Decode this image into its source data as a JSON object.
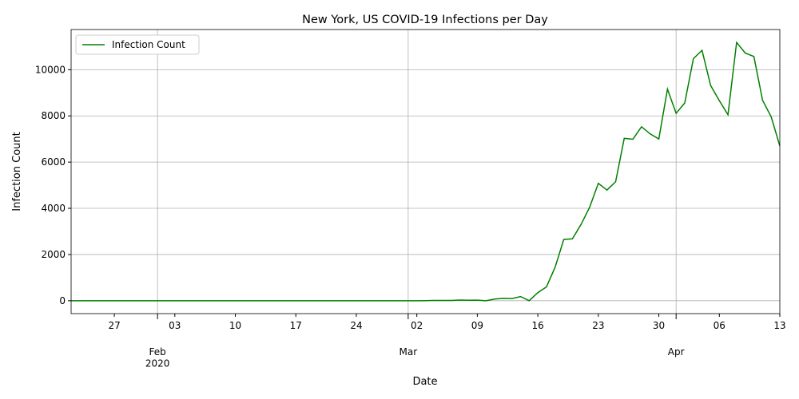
{
  "chart_data": {
    "type": "line",
    "title": "New York, US COVID-19 Infections per Day",
    "xlabel": "Date",
    "ylabel": "Infection Count",
    "x": [
      "2020-01-22",
      "2020-01-23",
      "2020-01-24",
      "2020-01-25",
      "2020-01-26",
      "2020-01-27",
      "2020-01-28",
      "2020-01-29",
      "2020-01-30",
      "2020-01-31",
      "2020-02-01",
      "2020-02-02",
      "2020-02-03",
      "2020-02-04",
      "2020-02-05",
      "2020-02-06",
      "2020-02-07",
      "2020-02-08",
      "2020-02-09",
      "2020-02-10",
      "2020-02-11",
      "2020-02-12",
      "2020-02-13",
      "2020-02-14",
      "2020-02-15",
      "2020-02-16",
      "2020-02-17",
      "2020-02-18",
      "2020-02-19",
      "2020-02-20",
      "2020-02-21",
      "2020-02-22",
      "2020-02-23",
      "2020-02-24",
      "2020-02-25",
      "2020-02-26",
      "2020-02-27",
      "2020-02-28",
      "2020-02-29",
      "2020-03-01",
      "2020-03-02",
      "2020-03-03",
      "2020-03-04",
      "2020-03-05",
      "2020-03-06",
      "2020-03-07",
      "2020-03-08",
      "2020-03-09",
      "2020-03-10",
      "2020-03-11",
      "2020-03-12",
      "2020-03-13",
      "2020-03-14",
      "2020-03-15",
      "2020-03-16",
      "2020-03-17",
      "2020-03-18",
      "2020-03-19",
      "2020-03-20",
      "2020-03-21",
      "2020-03-22",
      "2020-03-23",
      "2020-03-24",
      "2020-03-25",
      "2020-03-26",
      "2020-03-27",
      "2020-03-28",
      "2020-03-29",
      "2020-03-30",
      "2020-03-31",
      "2020-04-01",
      "2020-04-02",
      "2020-04-03",
      "2020-04-04",
      "2020-04-05",
      "2020-04-06",
      "2020-04-07",
      "2020-04-08",
      "2020-04-09",
      "2020-04-10",
      "2020-04-11",
      "2020-04-12",
      "2020-04-13"
    ],
    "series": [
      {
        "name": "Infection Count",
        "color": "#008000",
        "values": [
          0,
          0,
          0,
          0,
          0,
          0,
          0,
          0,
          0,
          0,
          0,
          0,
          0,
          0,
          0,
          0,
          0,
          0,
          0,
          0,
          0,
          0,
          0,
          0,
          0,
          0,
          0,
          0,
          0,
          0,
          0,
          0,
          0,
          0,
          0,
          0,
          0,
          0,
          0,
          0,
          0,
          1,
          9,
          11,
          10,
          30,
          20,
          25,
          0,
          70,
          100,
          95,
          180,
          0,
          350,
          600,
          1450,
          2650,
          2680,
          3300,
          4050,
          5080,
          4790,
          5150,
          7030,
          6990,
          7530,
          7220,
          7000,
          9160,
          8110,
          8560,
          10480,
          10840,
          9310,
          8660,
          8050,
          11180,
          10720,
          10570,
          8680,
          7960,
          6700
        ]
      }
    ],
    "xlim": [
      "2020-01-22",
      "2020-04-13"
    ],
    "xticks": [
      {
        "value": "2020-01-27",
        "label": "27"
      },
      {
        "value": "2020-02-03",
        "label": "03"
      },
      {
        "value": "2020-02-10",
        "label": "10"
      },
      {
        "value": "2020-02-17",
        "label": "17"
      },
      {
        "value": "2020-02-24",
        "label": "24"
      },
      {
        "value": "2020-03-02",
        "label": "02"
      },
      {
        "value": "2020-03-09",
        "label": "09"
      },
      {
        "value": "2020-03-16",
        "label": "16"
      },
      {
        "value": "2020-03-23",
        "label": "23"
      },
      {
        "value": "2020-03-30",
        "label": "30"
      },
      {
        "value": "2020-04-06",
        "label": "06"
      },
      {
        "value": "2020-04-13",
        "label": "13"
      }
    ],
    "xticks_major": [
      {
        "value": "2020-02-01",
        "label": "Feb\n2020"
      },
      {
        "value": "2020-03-01",
        "label": "Mar"
      },
      {
        "value": "2020-04-01",
        "label": "Apr"
      }
    ],
    "ylim": [
      -559,
      11739
    ],
    "yticks": [
      0,
      2000,
      4000,
      6000,
      8000,
      10000
    ],
    "grid": true,
    "legend": "upper left"
  }
}
